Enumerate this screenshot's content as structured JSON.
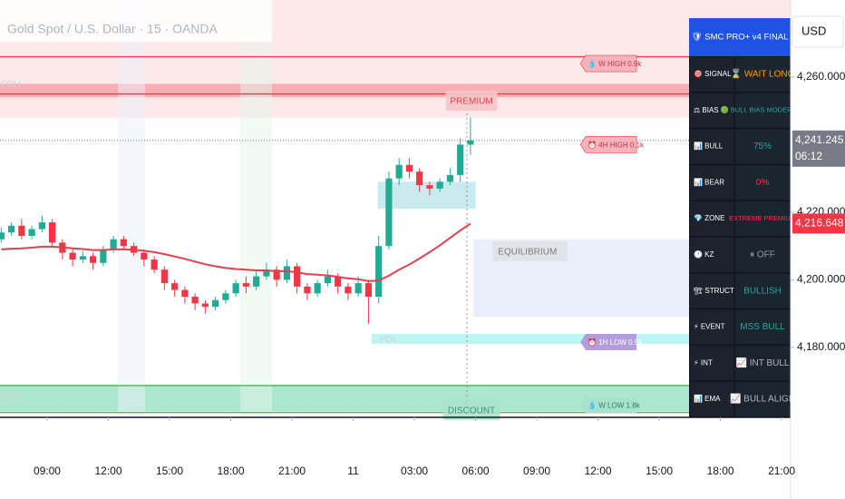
{
  "chart_data": {
    "type": "candlestick",
    "title": "Gold Spot / U.S. Dollar · 15 · OANDA",
    "currency": "USD",
    "xlim": [
      6.69,
      45.44
    ],
    "ylim": [
      4159.3,
      4282.8
    ],
    "xticks": [
      {
        "value": 9,
        "label": "09:00"
      },
      {
        "value": 12,
        "label": "12:00"
      },
      {
        "value": 15,
        "label": "15:00"
      },
      {
        "value": 18,
        "label": "18:00"
      },
      {
        "value": 21,
        "label": "21:00"
      },
      {
        "value": 24,
        "label": "11"
      },
      {
        "value": 27,
        "label": "03:00"
      },
      {
        "value": 30,
        "label": "06:00"
      },
      {
        "value": 33,
        "label": "09:00"
      },
      {
        "value": 36,
        "label": "12:00"
      },
      {
        "value": 39,
        "label": "15:00"
      },
      {
        "value": 42,
        "label": "18:00"
      },
      {
        "value": 45,
        "label": "21:00"
      }
    ],
    "yticks": [
      {
        "value": 4260,
        "label": "4,260.000"
      },
      {
        "value": 4220,
        "label": "4,220.000"
      },
      {
        "value": 4200,
        "label": "4,200.000"
      },
      {
        "value": 4180,
        "label": "4,180.000"
      }
    ],
    "up_color": "#22ab94",
    "down_color": "#f23645",
    "x": [
      6.75,
      7.25,
      7.75,
      8.25,
      8.75,
      9.25,
      9.75,
      10.25,
      10.75,
      11.25,
      11.75,
      12.25,
      12.75,
      13.25,
      13.75,
      14.25,
      14.75,
      15.25,
      15.75,
      16.25,
      16.75,
      17.25,
      17.75,
      18.25,
      18.75,
      19.25,
      19.75,
      20.25,
      20.75,
      21.25,
      21.75,
      22.25,
      22.75,
      23.25,
      23.75,
      24.25,
      24.75,
      25.25,
      25.75,
      26.25,
      26.75,
      27.25,
      27.75,
      28.25,
      28.75,
      29.25,
      29.75
    ],
    "open": [
      4212,
      4214,
      4216,
      4213,
      4215,
      4217,
      4211,
      4208,
      4206,
      4207,
      4205,
      4209,
      4212,
      4210,
      4208,
      4206,
      4203,
      4199,
      4197,
      4195,
      4193,
      4192,
      4194,
      4196,
      4199,
      4198,
      4201,
      4203,
      4200,
      4204,
      4198,
      4196,
      4199,
      4201,
      4198,
      4196,
      4199,
      4195,
      4210,
      4230,
      4234,
      4232,
      4228,
      4227,
      4229,
      4231,
      4240
    ],
    "high": [
      4215.5,
      4217,
      4218,
      4216,
      4219,
      4218,
      4212,
      4209,
      4208.5,
      4208,
      4210,
      4213,
      4213,
      4211,
      4209,
      4207,
      4204,
      4200,
      4198,
      4196,
      4194,
      4195,
      4197,
      4200,
      4201,
      4203,
      4205,
      4204,
      4206,
      4205,
      4199,
      4200,
      4203,
      4202,
      4199,
      4201,
      4200,
      4213,
      4232,
      4236,
      4236,
      4233,
      4229,
      4230,
      4233,
      4242,
      4248
    ],
    "low": [
      4211,
      4213,
      4212,
      4212,
      4214,
      4210,
      4206,
      4204,
      4205,
      4203,
      4204,
      4208,
      4209,
      4207,
      4204,
      4202,
      4197,
      4195,
      4193,
      4191,
      4190,
      4191,
      4193,
      4195,
      4196,
      4197,
      4200,
      4198,
      4199,
      4196,
      4194,
      4195,
      4198,
      4196,
      4194,
      4195,
      4187,
      4193,
      4209,
      4228,
      4230,
      4226,
      4225,
      4226,
      4228,
      4229,
      4237
    ],
    "close": [
      4214,
      4216,
      4213,
      4215,
      4217,
      4211,
      4208,
      4206,
      4207,
      4205,
      4209,
      4212,
      4210,
      4208,
      4206,
      4203,
      4199,
      4197,
      4195,
      4193,
      4192,
      4194,
      4196,
      4199,
      4198,
      4201,
      4203,
      4200,
      4204,
      4198,
      4196,
      4199,
      4201,
      4198,
      4196,
      4199,
      4195,
      4210,
      4230,
      4234,
      4232,
      4228,
      4227,
      4229,
      4231,
      4240,
      4241.245
    ],
    "ema": {
      "color": "#e0414e",
      "values": [
        4209,
        4209.2,
        4209.3,
        4209.5,
        4209.8,
        4209.8,
        4209.6,
        4209.3,
        4209.1,
        4208.8,
        4208.8,
        4209,
        4209,
        4208.9,
        4208.6,
        4208.2,
        4207.6,
        4206.9,
        4206.2,
        4205.4,
        4204.6,
        4204,
        4203.5,
        4203.2,
        4203,
        4202.8,
        4202.8,
        4202.5,
        4202.6,
        4202.2,
        4201.7,
        4201.5,
        4201.3,
        4200.9,
        4200.4,
        4200.2,
        4199.6,
        4199.8,
        4201.2,
        4203,
        4204.5,
        4206.3,
        4208.2,
        4210.2,
        4212.4,
        4214.6,
        4216.648
      ]
    },
    "zones": [
      {
        "range": [
          4248,
          4282.8
        ],
        "x": [
          6.69,
          45.44
        ],
        "color": "#fde4e6"
      },
      {
        "range": [
          4254,
          4258
        ],
        "x": [
          6.69,
          45.44
        ],
        "color": "#f6a3aa"
      },
      {
        "range": [
          4189,
          4212
        ],
        "x": [
          29.9,
          45.44
        ],
        "color": "#e8ebfa"
      },
      {
        "range": [
          4181,
          4184
        ],
        "x": [
          24.9,
          45.44
        ],
        "color": "#b3f3f1"
      },
      {
        "range": [
          4161,
          4169
        ],
        "x": [
          6.69,
          45.44
        ],
        "color": "#9fe2c6"
      },
      {
        "range": [
          4221,
          4229
        ],
        "x": [
          25.2,
          30
        ],
        "color": "#bfe6ec"
      }
    ],
    "levels": [
      {
        "value": 4266,
        "color": "#e0414e"
      },
      {
        "value": 4255,
        "color": "#e0414e"
      },
      {
        "value": 4168.7,
        "color": "#4caf50"
      },
      {
        "value": 4160.7,
        "color": "#4caf50"
      }
    ],
    "annotations": [
      {
        "text": "PDH",
        "t": 6.75,
        "price": 4258,
        "style": "faint"
      },
      {
        "text": "PDL",
        "t": 6.75,
        "price": 4165.5,
        "style": "faint"
      },
      {
        "text": "PDL",
        "t": 25.3,
        "price": 4182.5,
        "style": "faint"
      },
      {
        "text": "PREMIUM",
        "t": 29.8,
        "price": 4253,
        "style": "box-red"
      },
      {
        "text": "EQUILIBRIUM",
        "t": 31.1,
        "price": 4208.5,
        "style": "box-gray"
      },
      {
        "text": "DISCOUNT",
        "t": 29.8,
        "price": 4161.5,
        "style": "box-green"
      },
      {
        "text": "💧 W HIGH 0.9k",
        "t": 35.4,
        "price": 4264,
        "style": "tag-red"
      },
      {
        "text": "⏰ 4H HIGH 0.1k",
        "t": 35.4,
        "price": 4240,
        "style": "tag-red"
      },
      {
        "text": "⏰ 1H LOW 0.9k",
        "t": 35.4,
        "price": 4181.6,
        "style": "tag-purple"
      },
      {
        "text": "💧 W LOW 1.8k",
        "t": 35.4,
        "price": 4163,
        "style": "tag-green"
      }
    ],
    "price_markers": [
      {
        "value": 4241.245,
        "label": "4,241.245",
        "sub": "06:12",
        "color": "#787b86"
      },
      {
        "value": 4216.648,
        "label": "4,216.648",
        "color": "#f23645"
      }
    ],
    "panel": {
      "title": "🛡 SMC PRO+ v4 FINAL",
      "rows": [
        {
          "label": "🎯 SIGNAL",
          "value": "⌛ WAIT LONG",
          "color": "#ff9800"
        },
        {
          "label": "⚖ BIAS",
          "value": "🟢 BULL BIAS MODERATE",
          "color": "#26a69a"
        },
        {
          "label": "📊 BULL",
          "value": "75%",
          "color": "#26a69a"
        },
        {
          "label": "📊 BEAR",
          "value": "0%",
          "color": "#f23645"
        },
        {
          "label": "💎 ZONE",
          "value": "EXTREME PREMIUM",
          "color": "#f23645"
        },
        {
          "label": "🕐 KZ",
          "value": "⏸ OFF",
          "color": "#9598a1"
        },
        {
          "label": "🏗 STRUCT",
          "value": "BULLISH",
          "color": "#26a69a"
        },
        {
          "label": "⚡ EVENT",
          "value": "MSS BULL",
          "color": "#26a69a"
        },
        {
          "label": "⚡ INT",
          "value": "📈 INT BULL",
          "color": "#b2b5be"
        },
        {
          "label": "📊 EMA",
          "value": "📈 BULL ALIGN",
          "color": "#b2b5be"
        }
      ]
    }
  }
}
